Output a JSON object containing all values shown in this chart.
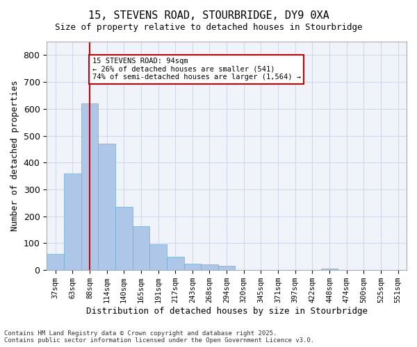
{
  "title_line1": "15, STEVENS ROAD, STOURBRIDGE, DY9 0XA",
  "title_line2": "Size of property relative to detached houses in Stourbridge",
  "xlabel": "Distribution of detached houses by size in Stourbridge",
  "ylabel": "Number of detached properties",
  "categories": [
    "37sqm",
    "63sqm",
    "88sqm",
    "114sqm",
    "140sqm",
    "165sqm",
    "191sqm",
    "217sqm",
    "243sqm",
    "268sqm",
    "294sqm",
    "320sqm",
    "345sqm",
    "371sqm",
    "397sqm",
    "422sqm",
    "448sqm",
    "474sqm",
    "500sqm",
    "525sqm",
    "551sqm"
  ],
  "values": [
    60,
    360,
    620,
    470,
    235,
    162,
    97,
    50,
    25,
    20,
    15,
    0,
    0,
    0,
    0,
    0,
    7,
    0,
    0,
    0,
    0
  ],
  "bar_color": "#aec6e8",
  "bar_edge_color": "#6aaed6",
  "grid_color": "#d0d8e8",
  "background_color": "#f0f4fa",
  "vline_x": 2.0,
  "vline_color": "#cc0000",
  "annotation_text": "15 STEVENS ROAD: 94sqm\n← 26% of detached houses are smaller (541)\n74% of semi-detached houses are larger (1,564) →",
  "annotation_box_color": "#cc0000",
  "ylim": [
    0,
    850
  ],
  "yticks": [
    0,
    100,
    200,
    300,
    400,
    500,
    600,
    700,
    800
  ],
  "footer_line1": "Contains HM Land Registry data © Crown copyright and database right 2025.",
  "footer_line2": "Contains public sector information licensed under the Open Government Licence v3.0."
}
